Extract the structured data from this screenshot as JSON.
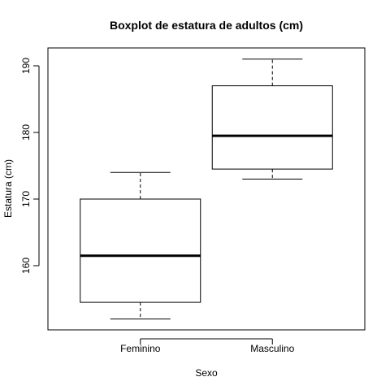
{
  "chart_data": {
    "type": "box",
    "title": "Boxplot de estatura de adultos (cm)",
    "xlabel": "Sexo",
    "ylabel": "Estatura (cm)",
    "ylim": [
      150,
      193
    ],
    "yticks": [
      160,
      170,
      180,
      190
    ],
    "categories": [
      "Feminino",
      "Masculino"
    ],
    "boxes": [
      {
        "category": "Feminino",
        "whisker_low": 152,
        "q1": 154.5,
        "median": 161.5,
        "q3": 170,
        "whisker_high": 174
      },
      {
        "category": "Masculino",
        "whisker_low": 173,
        "q1": 174.5,
        "median": 179.5,
        "q3": 187,
        "whisker_high": 191
      }
    ],
    "grid": false,
    "legend": "none"
  }
}
